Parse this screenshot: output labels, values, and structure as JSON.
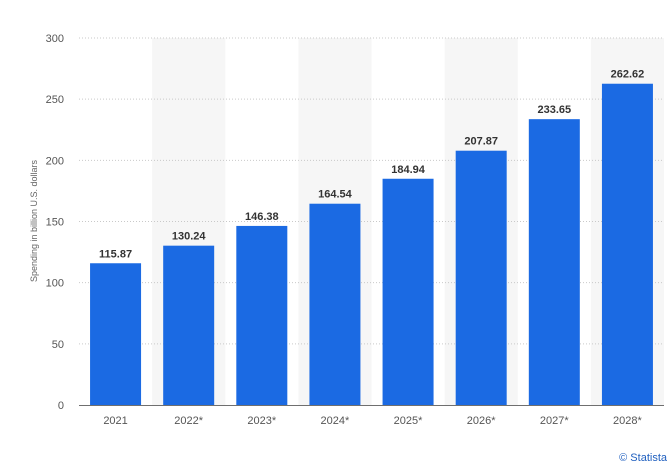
{
  "chart_data": {
    "type": "bar",
    "categories": [
      "2021",
      "2022*",
      "2023*",
      "2024*",
      "2025*",
      "2026*",
      "2027*",
      "2028*"
    ],
    "values": [
      115.87,
      130.24,
      146.38,
      164.54,
      184.94,
      207.87,
      233.65,
      262.62
    ],
    "data_labels": [
      "115.87",
      "130.24",
      "146.38",
      "164.54",
      "184.94",
      "207.87",
      "233.65",
      "262.62"
    ],
    "title": "",
    "xlabel": "",
    "ylabel": "Spending in billion U.S. dollars",
    "ylim": [
      0,
      300
    ],
    "yticks": [
      "0",
      "50",
      "100",
      "150",
      "200",
      "250",
      "300"
    ],
    "grid": true,
    "forecast_shading_categories": [
      "2022*",
      "2024*",
      "2026*",
      "2028*"
    ],
    "colors": {
      "bar": "#1b6ae3",
      "shade": "#f6f6f6",
      "grid": "#c9c9c9",
      "axis": "#6f6f6f"
    }
  },
  "credit": {
    "text": "© Statista"
  }
}
